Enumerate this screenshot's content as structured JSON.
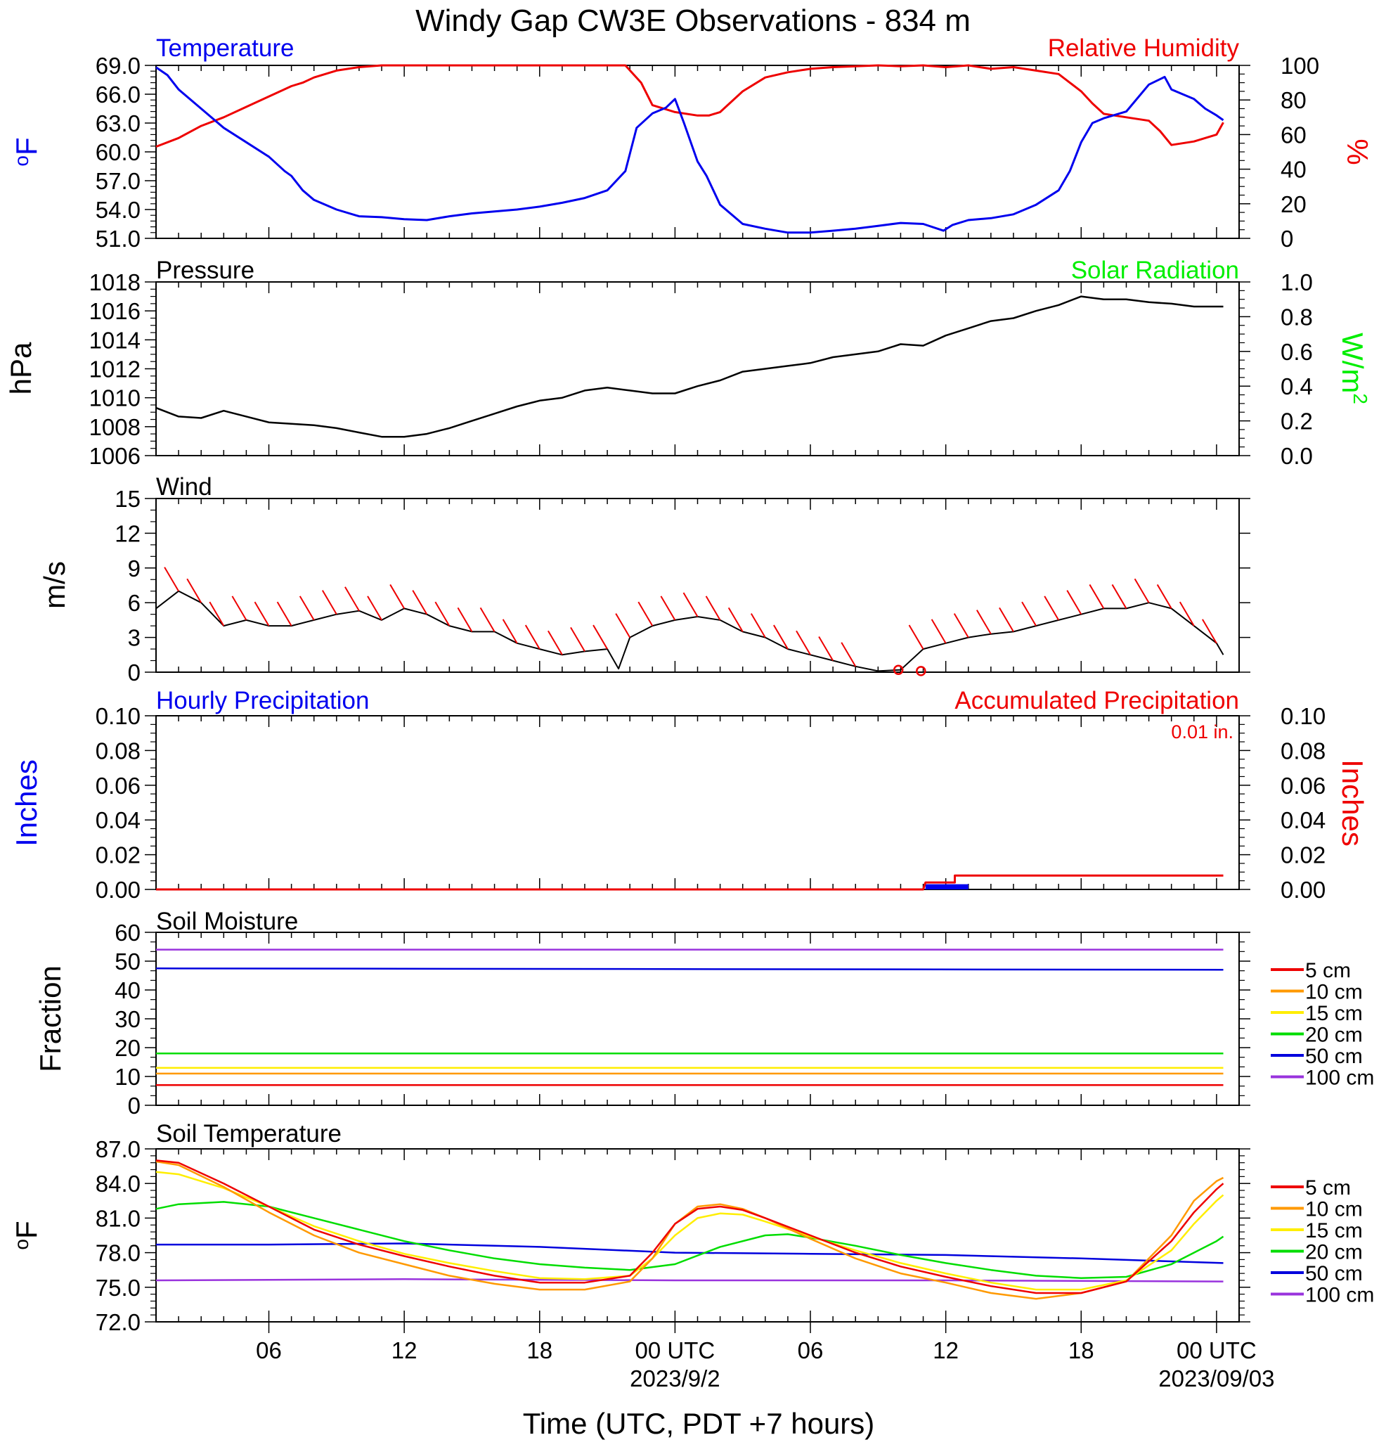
{
  "title": "Windy Gap CW3E Observations - 834 m",
  "xlabel": "Time (UTC, PDT +7 hours)",
  "x_axis": {
    "tick_labels": [
      {
        "hour": 6,
        "label": "06"
      },
      {
        "hour": 12,
        "label": "12"
      },
      {
        "hour": 18,
        "label": "18"
      },
      {
        "hour": 24,
        "label": "00 UTC",
        "date": "2023/9/2"
      },
      {
        "hour": 30,
        "label": "06"
      },
      {
        "hour": 36,
        "label": "12"
      },
      {
        "hour": 42,
        "label": "18"
      },
      {
        "hour": 48,
        "label": "00 UTC",
        "date": "2023/09/03"
      }
    ],
    "xlim": [
      1,
      49
    ]
  },
  "colors": {
    "temperature": "#0000ee",
    "humidity": "#ee0000",
    "solar": "#00ee00",
    "black": "#000000",
    "5 cm": "#ee0000",
    "10 cm": "#ff9900",
    "15 cm": "#ffee00",
    "20 cm": "#00dd00",
    "50 cm": "#0000dd",
    "100 cm": "#9933dd"
  },
  "panels": {
    "temp_rh": {
      "left_title": "Temperature",
      "right_title": "Relative Humidity",
      "left_unit": "°F",
      "left_unit_base": "o",
      "left_unit_main": "F",
      "right_unit": "%",
      "left_ticks": [
        "51.0",
        "54.0",
        "57.0",
        "60.0",
        "63.0",
        "66.0",
        "69.0"
      ],
      "right_ticks": [
        "0",
        "20",
        "40",
        "60",
        "80",
        "100"
      ]
    },
    "pressure": {
      "left_title": "Pressure",
      "right_title": "Solar Radiation",
      "left_unit": "hPa",
      "right_unit": "W/m²",
      "right_unit_base": "W/m",
      "right_unit_sup": "2",
      "left_ticks": [
        "1006",
        "1008",
        "1010",
        "1012",
        "1014",
        "1016",
        "1018"
      ],
      "right_ticks": [
        "0.0",
        "0.2",
        "0.4",
        "0.6",
        "0.8",
        "1.0"
      ]
    },
    "wind": {
      "left_title": "Wind",
      "left_unit": "m/s",
      "left_ticks": [
        "0",
        "3",
        "6",
        "9",
        "12",
        "15"
      ]
    },
    "precip": {
      "left_title": "Hourly Precipitation",
      "right_title": "Accumulated Precipitation",
      "total_label": "0.01 in.",
      "left_unit": "Inches",
      "right_unit": "Inches",
      "left_ticks": [
        "0.00",
        "0.02",
        "0.04",
        "0.06",
        "0.08",
        "0.10"
      ],
      "right_ticks": [
        "0.00",
        "0.02",
        "0.04",
        "0.06",
        "0.08",
        "0.10"
      ]
    },
    "soil_moisture": {
      "left_title": "Soil Moisture",
      "left_unit": "Fraction",
      "left_ticks": [
        "0",
        "10",
        "20",
        "30",
        "40",
        "50",
        "60"
      ],
      "legend": [
        "5 cm",
        "10 cm",
        "15 cm",
        "20 cm",
        "50 cm",
        "100 cm"
      ]
    },
    "soil_temp": {
      "left_title": "Soil Temperature",
      "left_unit": "°F",
      "left_unit_base": "o",
      "left_unit_main": "F",
      "left_ticks": [
        "72.0",
        "75.0",
        "78.0",
        "81.0",
        "84.0",
        "87.0"
      ],
      "legend": [
        "5 cm",
        "10 cm",
        "15 cm",
        "20 cm",
        "50 cm",
        "100 cm"
      ]
    }
  },
  "chart_data": [
    {
      "type": "line",
      "title": "Temperature / Relative Humidity",
      "ylabel": "°F",
      "y2label": "%",
      "ylim": [
        51,
        69
      ],
      "y2lim": [
        0,
        100
      ],
      "series": [
        {
          "name": "Temperature",
          "axis": "left",
          "x": [
            1,
            1.5,
            2,
            3,
            4,
            5,
            6,
            6.7,
            7,
            7.5,
            8,
            9,
            10,
            11,
            12,
            13,
            14,
            15,
            16,
            17,
            18,
            19,
            20,
            21,
            21.8,
            22.3,
            23,
            23.6,
            24,
            24.4,
            25,
            25.4,
            26,
            27,
            28,
            29,
            30,
            31,
            32,
            33,
            34,
            35,
            35.9,
            36.3,
            37,
            38,
            39,
            40,
            41,
            41.5,
            42,
            42.5,
            43,
            44,
            45,
            45.7,
            46,
            46.5,
            47,
            47.5,
            48,
            48.3
          ],
          "y": [
            68.8,
            68.0,
            66.5,
            64.5,
            62.5,
            61.0,
            59.5,
            58.0,
            57.5,
            56.0,
            55.0,
            54.0,
            53.3,
            53.2,
            53.0,
            52.9,
            53.3,
            53.6,
            53.8,
            54.0,
            54.3,
            54.7,
            55.2,
            56.0,
            58.0,
            62.5,
            64.0,
            64.6,
            65.5,
            63.0,
            59.0,
            57.5,
            54.5,
            52.5,
            52.0,
            51.6,
            51.6,
            51.8,
            52.0,
            52.3,
            52.6,
            52.5,
            51.8,
            52.4,
            52.9,
            53.1,
            53.5,
            54.5,
            56.0,
            58.0,
            61.0,
            63.0,
            63.5,
            64.2,
            67.0,
            67.8,
            66.5,
            66.0,
            65.5,
            64.5,
            63.8,
            63.3
          ]
        },
        {
          "name": "Relative Humidity",
          "axis": "right",
          "x": [
            1,
            2,
            3,
            4,
            5,
            6,
            6.5,
            7,
            7.5,
            8,
            9,
            10,
            11,
            12,
            13,
            14,
            15,
            16,
            17,
            18,
            19,
            20,
            21,
            21.8,
            22.5,
            23,
            24,
            25,
            25.5,
            26,
            27,
            28,
            29,
            30,
            31,
            32,
            33,
            34,
            35,
            36,
            37,
            38,
            39,
            40,
            41,
            42,
            42.5,
            43,
            44,
            45,
            45.5,
            46,
            47,
            48,
            48.3
          ],
          "y": [
            53,
            58,
            65,
            70,
            76,
            82,
            85,
            88,
            90,
            93,
            97,
            99,
            100,
            100,
            100,
            100,
            100,
            100,
            100,
            100,
            100,
            100,
            100,
            100,
            90,
            77,
            73,
            71,
            71,
            73,
            85,
            93,
            96,
            98,
            99,
            99.5,
            100,
            99.5,
            100,
            99,
            100,
            98,
            99,
            97,
            95,
            85,
            78,
            72,
            70,
            68,
            62,
            54,
            56,
            60,
            67
          ]
        }
      ]
    },
    {
      "type": "line",
      "title": "Pressure / Solar Radiation",
      "ylabel": "hPa",
      "y2label": "W/m²",
      "ylim": [
        1006,
        1018
      ],
      "y2lim": [
        0,
        1.0
      ],
      "series": [
        {
          "name": "Pressure",
          "axis": "left",
          "x": [
            1,
            2,
            3,
            4,
            5,
            6,
            7,
            8,
            9,
            10,
            11,
            12,
            13,
            14,
            15,
            16,
            17,
            18,
            19,
            20,
            21,
            22,
            23,
            24,
            25,
            26,
            27,
            28,
            29,
            30,
            31,
            32,
            33,
            34,
            35,
            36,
            37,
            38,
            39,
            40,
            41,
            42,
            43,
            44,
            45,
            46,
            47,
            48,
            48.3
          ],
          "y": [
            1009.3,
            1008.7,
            1008.6,
            1009.1,
            1008.7,
            1008.3,
            1008.2,
            1008.1,
            1007.9,
            1007.6,
            1007.3,
            1007.3,
            1007.5,
            1007.9,
            1008.4,
            1008.9,
            1009.4,
            1009.8,
            1010.0,
            1010.5,
            1010.7,
            1010.5,
            1010.3,
            1010.3,
            1010.8,
            1011.2,
            1011.8,
            1012.0,
            1012.2,
            1012.4,
            1012.8,
            1013.0,
            1013.2,
            1013.7,
            1013.6,
            1014.3,
            1014.8,
            1015.3,
            1015.5,
            1016.0,
            1016.4,
            1017.0,
            1016.8,
            1016.8,
            1016.6,
            1016.5,
            1016.3,
            1016.3,
            1016.3
          ]
        }
      ]
    },
    {
      "type": "line",
      "title": "Wind",
      "ylabel": "m/s",
      "ylim": [
        0,
        15
      ],
      "series": [
        {
          "name": "Wind speed",
          "axis": "left",
          "x": [
            1,
            2,
            3,
            4,
            5,
            6,
            7,
            8,
            9,
            10,
            11,
            12,
            13,
            14,
            15,
            16,
            17,
            18,
            19,
            20,
            21,
            21.5,
            22,
            23,
            24,
            25,
            26,
            27,
            28,
            29,
            30,
            31,
            32,
            33,
            34,
            35,
            36,
            37,
            38,
            39,
            40,
            41,
            42,
            43,
            44,
            45,
            46,
            47,
            48,
            48.3
          ],
          "y": [
            5.5,
            7.0,
            6.0,
            4.0,
            4.5,
            4.0,
            4.0,
            4.5,
            5.0,
            5.3,
            4.5,
            5.5,
            5.0,
            4.0,
            3.5,
            3.5,
            2.5,
            2.0,
            1.5,
            1.8,
            2.0,
            0.3,
            3.0,
            4.0,
            4.5,
            4.8,
            4.5,
            3.5,
            3.0,
            2.0,
            1.5,
            1.0,
            0.5,
            0.1,
            0.2,
            2.0,
            2.5,
            3.0,
            3.3,
            3.5,
            4.0,
            4.5,
            5.0,
            5.5,
            5.5,
            6.0,
            5.5,
            4.0,
            2.5,
            1.5
          ]
        }
      ]
    },
    {
      "type": "line",
      "title": "Precipitation",
      "ylabel": "Inches",
      "y2label": "Inches",
      "ylim": [
        0,
        0.1
      ],
      "y2lim": [
        0,
        0.1
      ],
      "series": [
        {
          "name": "Hourly Precipitation",
          "axis": "left",
          "x": [
            35.1,
            35.5,
            36.0,
            36.5,
            37.0
          ],
          "y": [
            0.003,
            0.003,
            0.003,
            0.003,
            0.003
          ]
        },
        {
          "name": "Accumulated Precipitation",
          "axis": "right",
          "x": [
            1,
            35,
            35.1,
            36.4,
            36.4,
            48.3
          ],
          "y": [
            0,
            0,
            0.004,
            0.004,
            0.008,
            0.008
          ]
        }
      ]
    },
    {
      "type": "line",
      "title": "Soil Moisture",
      "ylabel": "Fraction",
      "ylim": [
        0,
        60
      ],
      "series": [
        {
          "name": "5 cm",
          "x": [
            1,
            48.3
          ],
          "y": [
            7,
            7
          ]
        },
        {
          "name": "10 cm",
          "x": [
            1,
            48.3
          ],
          "y": [
            11,
            11
          ]
        },
        {
          "name": "15 cm",
          "x": [
            1,
            48.3
          ],
          "y": [
            13,
            13
          ]
        },
        {
          "name": "20 cm",
          "x": [
            1,
            48.3
          ],
          "y": [
            18,
            18
          ]
        },
        {
          "name": "50 cm",
          "x": [
            1,
            48.3
          ],
          "y": [
            47.5,
            47
          ]
        },
        {
          "name": "100 cm",
          "x": [
            1,
            48.3
          ],
          "y": [
            54,
            54
          ]
        }
      ]
    },
    {
      "type": "line",
      "title": "Soil Temperature",
      "ylabel": "°F",
      "ylim": [
        72,
        87
      ],
      "series": [
        {
          "name": "5 cm",
          "x": [
            1,
            2,
            4,
            6,
            8,
            10,
            12,
            14,
            16,
            18,
            20,
            22,
            23,
            24,
            25,
            26,
            27,
            28,
            30,
            32,
            34,
            36,
            38,
            40,
            42,
            44,
            46,
            47,
            48,
            48.3
          ],
          "y": [
            86.0,
            85.8,
            84.0,
            82.0,
            80.0,
            78.7,
            77.7,
            76.8,
            76.0,
            75.4,
            75.4,
            76.0,
            78.0,
            80.5,
            81.8,
            82.0,
            81.7,
            81.0,
            79.5,
            78.0,
            76.8,
            75.9,
            75.1,
            74.5,
            74.5,
            75.5,
            79.0,
            81.5,
            83.5,
            84.0
          ]
        },
        {
          "name": "10 cm",
          "x": [
            1,
            2,
            4,
            6,
            8,
            10,
            12,
            14,
            16,
            18,
            20,
            22,
            23,
            24,
            25,
            26,
            27,
            28,
            30,
            32,
            34,
            36,
            38,
            40,
            42,
            44,
            46,
            47,
            48,
            48.3
          ],
          "y": [
            85.9,
            85.6,
            83.7,
            81.5,
            79.5,
            78.0,
            77.0,
            76.0,
            75.3,
            74.8,
            74.8,
            75.5,
            77.5,
            80.5,
            82.0,
            82.2,
            81.8,
            81.0,
            79.2,
            77.5,
            76.2,
            75.4,
            74.5,
            74.0,
            74.5,
            75.5,
            79.5,
            82.5,
            84.2,
            84.5
          ]
        },
        {
          "name": "15 cm",
          "x": [
            1,
            2,
            4,
            6,
            8,
            10,
            12,
            14,
            16,
            18,
            20,
            22,
            23,
            24,
            25,
            26,
            27,
            28,
            30,
            32,
            34,
            36,
            38,
            40,
            42,
            44,
            46,
            47,
            48,
            48.3
          ],
          "y": [
            85.0,
            84.8,
            83.6,
            82.0,
            80.3,
            79.0,
            77.9,
            77.1,
            76.4,
            75.8,
            75.7,
            76.0,
            77.5,
            79.5,
            81.0,
            81.4,
            81.3,
            80.7,
            79.4,
            78.2,
            77.1,
            76.2,
            75.4,
            74.8,
            74.8,
            75.6,
            78.2,
            80.5,
            82.5,
            83.0
          ]
        },
        {
          "name": "20 cm",
          "x": [
            1,
            2,
            4,
            6,
            8,
            10,
            12,
            14,
            16,
            18,
            20,
            22,
            24,
            26,
            28,
            29,
            30,
            32,
            34,
            36,
            38,
            40,
            42,
            44,
            46,
            47,
            48,
            48.3
          ],
          "y": [
            81.8,
            82.2,
            82.4,
            82.0,
            81.0,
            80.0,
            79.0,
            78.2,
            77.5,
            77.0,
            76.7,
            76.5,
            77.0,
            78.5,
            79.5,
            79.6,
            79.3,
            78.6,
            77.8,
            77.1,
            76.5,
            76.0,
            75.8,
            75.9,
            77.0,
            78.0,
            79.0,
            79.4
          ]
        },
        {
          "name": "50 cm",
          "x": [
            1,
            6,
            12,
            18,
            24,
            30,
            36,
            42,
            48.3
          ],
          "y": [
            78.7,
            78.7,
            78.8,
            78.5,
            78.0,
            77.9,
            77.8,
            77.5,
            77.1
          ]
        },
        {
          "name": "100 cm",
          "x": [
            1,
            12,
            24,
            36,
            48.3
          ],
          "y": [
            75.6,
            75.7,
            75.6,
            75.6,
            75.5
          ]
        }
      ]
    }
  ]
}
